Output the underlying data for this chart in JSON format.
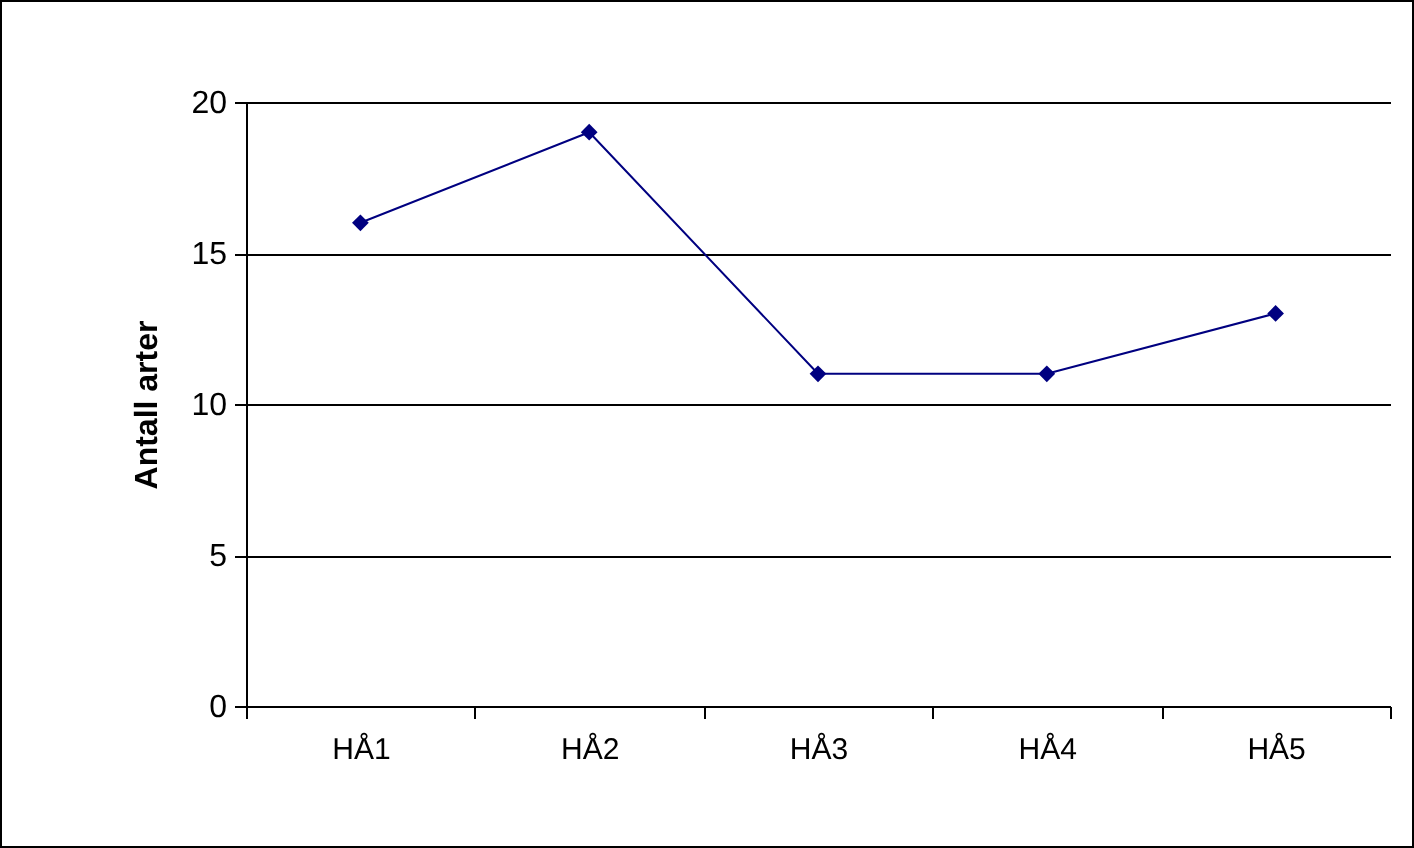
{
  "chart_data": {
    "type": "line",
    "ylabel": "Antall arter",
    "categories": [
      "HÅ1",
      "HÅ2",
      "HÅ3",
      "HÅ4",
      "HÅ5"
    ],
    "series": [
      {
        "color": "#000080",
        "values": [
          16,
          19,
          11,
          11,
          13
        ]
      }
    ],
    "ylim": [
      0,
      20
    ],
    "yticks": [
      0,
      5,
      10,
      15,
      20
    ],
    "grid": "y",
    "legend": false,
    "marker": "diamond",
    "line_style": "solid"
  }
}
